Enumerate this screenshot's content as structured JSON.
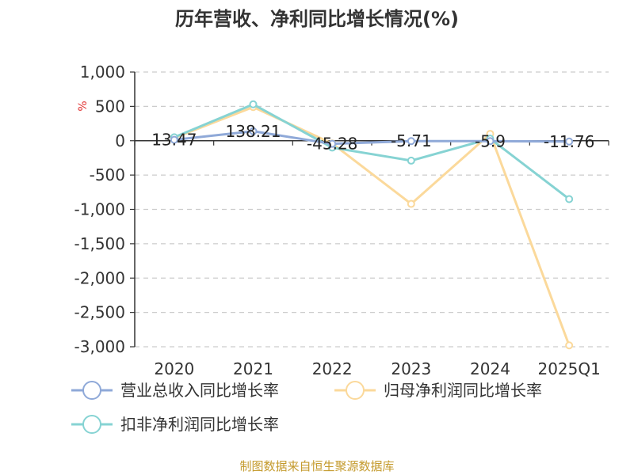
{
  "chart_data": {
    "type": "line",
    "title": "历年营收、净利同比增长情况(%)",
    "ylabel": "%",
    "categories": [
      "2020",
      "2021",
      "2022",
      "2023",
      "2024",
      "2025Q1"
    ],
    "yticks": [
      "1,000",
      "500",
      "0",
      "-500",
      "-1,000",
      "-1,500",
      "-2,000",
      "-2,500",
      "-3,000"
    ],
    "ylim": [
      -3000,
      1000
    ],
    "grid": true,
    "legend_position": "bottom-left",
    "series": [
      {
        "name": "营业总收入同比增长率",
        "color": "#8fa9d8",
        "values": [
          13.47,
          138.21,
          -45.28,
          -5.71,
          -5.9,
          -11.76
        ],
        "labels": [
          "13.47",
          "138.21",
          "-45.28",
          "-5.71",
          "-5.9",
          "-11.76"
        ]
      },
      {
        "name": "归母净利润同比增长率",
        "color": "#fbd99b",
        "values": [
          40,
          490,
          -40,
          -920,
          100,
          -2980
        ]
      },
      {
        "name": "扣非净利润同比增长率",
        "color": "#86d3d3",
        "values": [
          50,
          530,
          -100,
          -290,
          30,
          -850
        ]
      }
    ]
  },
  "source": "制图数据来自恒生聚源数据库"
}
